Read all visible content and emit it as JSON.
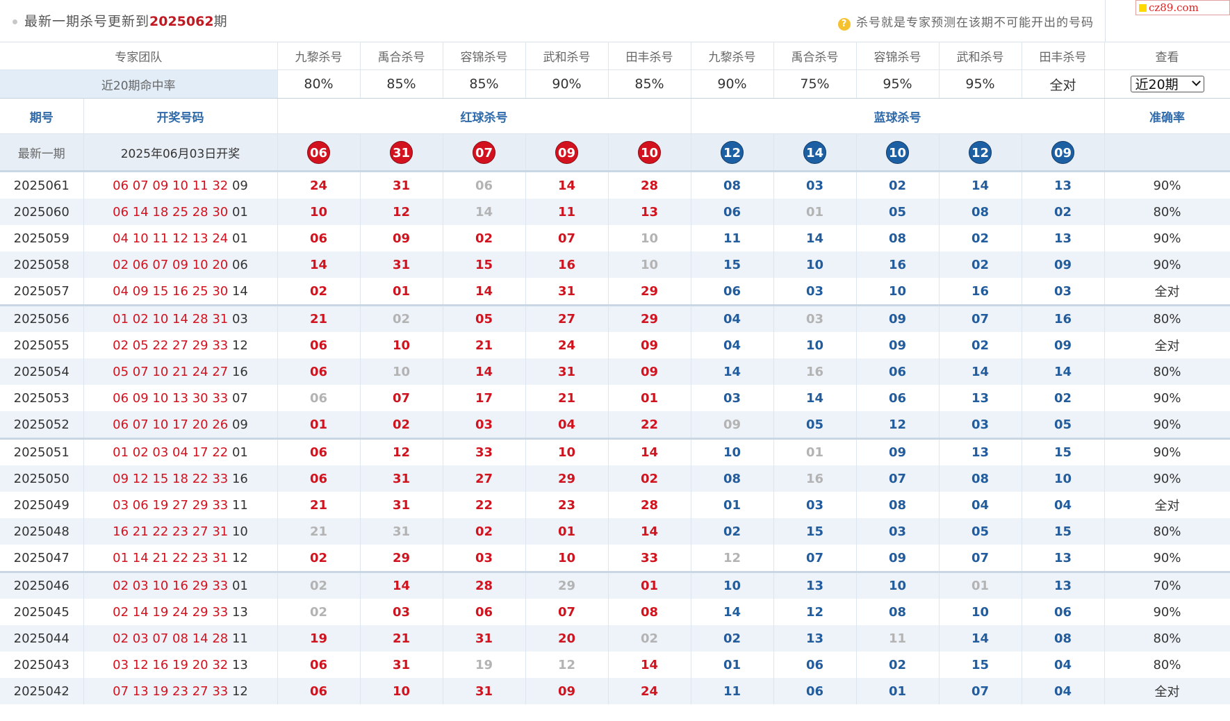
{
  "header": {
    "update_prefix": "最新一期杀号更新到",
    "update_issue": "2025062",
    "update_suffix": "期",
    "tip_icon": "question-icon",
    "tip_text": "杀号就是专家预测在该期不可能开出的号码"
  },
  "logo": {
    "text": "cz89.com"
  },
  "experts_header": {
    "team_label": "专家团队",
    "red_experts": [
      "九黎杀号",
      "禹合杀号",
      "容锦杀号",
      "武和杀号",
      "田丰杀号"
    ],
    "blue_experts": [
      "九黎杀号",
      "禹合杀号",
      "容锦杀号",
      "武和杀号",
      "田丰杀号"
    ],
    "view_label": "查看"
  },
  "hit_rate": {
    "label": "近20期命中率",
    "values": [
      "80%",
      "85%",
      "85%",
      "90%",
      "85%",
      "90%",
      "75%",
      "95%",
      "95%",
      "全对"
    ],
    "range_select": "近20期"
  },
  "columns": {
    "issue": "期号",
    "draw": "开奖号码",
    "red_kill": "红球杀号",
    "blue_kill": "蓝球杀号",
    "accuracy": "准确率"
  },
  "latest": {
    "label": "最新一期",
    "draw_text": {
      "pre": "2025年",
      "month": "06",
      "mid": "月",
      "day": "03",
      "post": "日开奖"
    },
    "red_balls": [
      "06",
      "31",
      "07",
      "09",
      "10"
    ],
    "blue_balls": [
      "12",
      "14",
      "10",
      "12",
      "09"
    ]
  },
  "rows": [
    {
      "issue": "2025061",
      "red": [
        "06",
        "07",
        "09",
        "10",
        "11",
        "32"
      ],
      "blue": "09",
      "kills": [
        "24",
        "31",
        "06",
        "14",
        "28",
        "08",
        "03",
        "02",
        "14",
        "13"
      ],
      "miss": [
        2
      ],
      "acc": "90%"
    },
    {
      "issue": "2025060",
      "red": [
        "06",
        "14",
        "18",
        "25",
        "28",
        "30"
      ],
      "blue": "01",
      "kills": [
        "10",
        "12",
        "14",
        "11",
        "13",
        "06",
        "01",
        "05",
        "08",
        "02"
      ],
      "miss": [
        2,
        6
      ],
      "acc": "80%"
    },
    {
      "issue": "2025059",
      "red": [
        "04",
        "10",
        "11",
        "12",
        "13",
        "24"
      ],
      "blue": "01",
      "kills": [
        "06",
        "09",
        "02",
        "07",
        "10",
        "11",
        "14",
        "08",
        "02",
        "13"
      ],
      "miss": [
        4
      ],
      "acc": "90%"
    },
    {
      "issue": "2025058",
      "red": [
        "02",
        "06",
        "07",
        "09",
        "10",
        "20"
      ],
      "blue": "06",
      "kills": [
        "14",
        "31",
        "15",
        "16",
        "10",
        "15",
        "10",
        "16",
        "02",
        "09"
      ],
      "miss": [
        4
      ],
      "acc": "90%"
    },
    {
      "issue": "2025057",
      "red": [
        "04",
        "09",
        "15",
        "16",
        "25",
        "30"
      ],
      "blue": "14",
      "kills": [
        "02",
        "01",
        "14",
        "31",
        "29",
        "06",
        "03",
        "10",
        "16",
        "03"
      ],
      "miss": [],
      "acc": "全对"
    },
    {
      "issue": "2025056",
      "red": [
        "01",
        "02",
        "10",
        "14",
        "28",
        "31"
      ],
      "blue": "03",
      "kills": [
        "21",
        "02",
        "05",
        "27",
        "29",
        "04",
        "03",
        "09",
        "07",
        "16"
      ],
      "miss": [
        1,
        6
      ],
      "acc": "80%"
    },
    {
      "issue": "2025055",
      "red": [
        "02",
        "05",
        "22",
        "27",
        "29",
        "33"
      ],
      "blue": "12",
      "kills": [
        "06",
        "10",
        "21",
        "24",
        "09",
        "04",
        "10",
        "09",
        "02",
        "09"
      ],
      "miss": [],
      "acc": "全对"
    },
    {
      "issue": "2025054",
      "red": [
        "05",
        "07",
        "10",
        "21",
        "24",
        "27"
      ],
      "blue": "16",
      "kills": [
        "06",
        "10",
        "14",
        "31",
        "09",
        "14",
        "16",
        "06",
        "14",
        "14"
      ],
      "miss": [
        1,
        6
      ],
      "acc": "80%"
    },
    {
      "issue": "2025053",
      "red": [
        "06",
        "09",
        "10",
        "13",
        "30",
        "33"
      ],
      "blue": "07",
      "kills": [
        "06",
        "07",
        "17",
        "21",
        "01",
        "03",
        "14",
        "06",
        "13",
        "02"
      ],
      "miss": [
        0
      ],
      "acc": "90%"
    },
    {
      "issue": "2025052",
      "red": [
        "06",
        "07",
        "10",
        "17",
        "20",
        "26"
      ],
      "blue": "09",
      "kills": [
        "01",
        "02",
        "03",
        "04",
        "22",
        "09",
        "05",
        "12",
        "03",
        "05"
      ],
      "miss": [
        5
      ],
      "acc": "90%"
    },
    {
      "issue": "2025051",
      "red": [
        "01",
        "02",
        "03",
        "04",
        "17",
        "22"
      ],
      "blue": "01",
      "kills": [
        "06",
        "12",
        "33",
        "10",
        "14",
        "10",
        "01",
        "09",
        "13",
        "15"
      ],
      "miss": [
        6
      ],
      "acc": "90%"
    },
    {
      "issue": "2025050",
      "red": [
        "09",
        "12",
        "15",
        "18",
        "22",
        "33"
      ],
      "blue": "16",
      "kills": [
        "06",
        "31",
        "27",
        "29",
        "02",
        "08",
        "16",
        "07",
        "08",
        "10"
      ],
      "miss": [
        6
      ],
      "acc": "90%"
    },
    {
      "issue": "2025049",
      "red": [
        "03",
        "06",
        "19",
        "27",
        "29",
        "33"
      ],
      "blue": "11",
      "kills": [
        "21",
        "31",
        "22",
        "23",
        "28",
        "01",
        "03",
        "08",
        "04",
        "04"
      ],
      "miss": [],
      "acc": "全对"
    },
    {
      "issue": "2025048",
      "red": [
        "16",
        "21",
        "22",
        "23",
        "27",
        "31"
      ],
      "blue": "10",
      "kills": [
        "21",
        "31",
        "02",
        "01",
        "14",
        "02",
        "15",
        "03",
        "05",
        "15"
      ],
      "miss": [
        0,
        1
      ],
      "acc": "80%"
    },
    {
      "issue": "2025047",
      "red": [
        "01",
        "14",
        "21",
        "22",
        "23",
        "31"
      ],
      "blue": "12",
      "kills": [
        "02",
        "29",
        "03",
        "10",
        "33",
        "12",
        "07",
        "09",
        "07",
        "13"
      ],
      "miss": [
        5
      ],
      "acc": "90%"
    },
    {
      "issue": "2025046",
      "red": [
        "02",
        "03",
        "10",
        "16",
        "29",
        "33"
      ],
      "blue": "01",
      "kills": [
        "02",
        "14",
        "28",
        "29",
        "01",
        "10",
        "13",
        "10",
        "01",
        "13"
      ],
      "miss": [
        0,
        3,
        8
      ],
      "acc": "70%"
    },
    {
      "issue": "2025045",
      "red": [
        "02",
        "14",
        "19",
        "24",
        "29",
        "33"
      ],
      "blue": "13",
      "kills": [
        "02",
        "03",
        "06",
        "07",
        "08",
        "14",
        "12",
        "08",
        "10",
        "06"
      ],
      "miss": [
        0
      ],
      "acc": "90%"
    },
    {
      "issue": "2025044",
      "red": [
        "02",
        "03",
        "07",
        "08",
        "14",
        "28"
      ],
      "blue": "11",
      "kills": [
        "19",
        "21",
        "31",
        "20",
        "02",
        "02",
        "13",
        "11",
        "14",
        "08"
      ],
      "miss": [
        4,
        7
      ],
      "acc": "80%"
    },
    {
      "issue": "2025043",
      "red": [
        "03",
        "12",
        "16",
        "19",
        "20",
        "32"
      ],
      "blue": "13",
      "kills": [
        "06",
        "31",
        "19",
        "12",
        "14",
        "01",
        "06",
        "02",
        "15",
        "04"
      ],
      "miss": [
        2,
        3
      ],
      "acc": "80%"
    },
    {
      "issue": "2025042",
      "red": [
        "07",
        "13",
        "19",
        "23",
        "27",
        "33"
      ],
      "blue": "12",
      "kills": [
        "06",
        "10",
        "31",
        "09",
        "24",
        "11",
        "06",
        "01",
        "07",
        "04"
      ],
      "miss": [],
      "acc": "全对"
    }
  ],
  "colors": {
    "red_ball": "#d3121f",
    "blue_ball": "#1c5fa3",
    "red_kill_text": "#d0141f",
    "blue_kill_text": "#225c9c",
    "miss_text": "#b3b3b3",
    "header_blue": "#2f6aaa",
    "stripe": "#eef3f9"
  }
}
